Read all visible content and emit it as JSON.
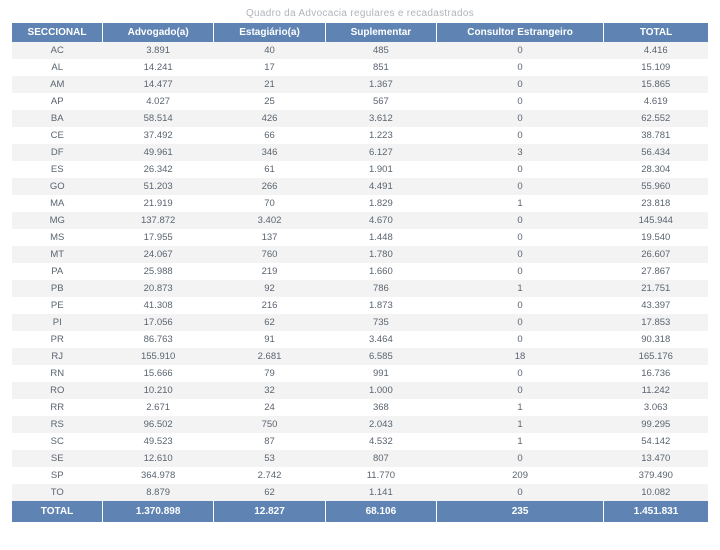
{
  "title": "Quadro da Advocacia regulares e recadastrados",
  "colors": {
    "header_bg": "#5f84b3",
    "header_text": "#ffffff",
    "row_even_bg": "#f3f3f3",
    "row_odd_bg": "#ffffff",
    "cell_text": "#5a6470",
    "title_text": "#b0b4ba"
  },
  "table": {
    "columns": [
      "SECCIONAL",
      "Advogado(a)",
      "Estagiário(a)",
      "Suplementar",
      "Consultor Estrangeiro",
      "TOTAL"
    ],
    "rows": [
      [
        "AC",
        "3.891",
        "40",
        "485",
        "0",
        "4.416"
      ],
      [
        "AL",
        "14.241",
        "17",
        "851",
        "0",
        "15.109"
      ],
      [
        "AM",
        "14.477",
        "21",
        "1.367",
        "0",
        "15.865"
      ],
      [
        "AP",
        "4.027",
        "25",
        "567",
        "0",
        "4.619"
      ],
      [
        "BA",
        "58.514",
        "426",
        "3.612",
        "0",
        "62.552"
      ],
      [
        "CE",
        "37.492",
        "66",
        "1.223",
        "0",
        "38.781"
      ],
      [
        "DF",
        "49.961",
        "346",
        "6.127",
        "3",
        "56.434"
      ],
      [
        "ES",
        "26.342",
        "61",
        "1.901",
        "0",
        "28.304"
      ],
      [
        "GO",
        "51.203",
        "266",
        "4.491",
        "0",
        "55.960"
      ],
      [
        "MA",
        "21.919",
        "70",
        "1.829",
        "1",
        "23.818"
      ],
      [
        "MG",
        "137.872",
        "3.402",
        "4.670",
        "0",
        "145.944"
      ],
      [
        "MS",
        "17.955",
        "137",
        "1.448",
        "0",
        "19.540"
      ],
      [
        "MT",
        "24.067",
        "760",
        "1.780",
        "0",
        "26.607"
      ],
      [
        "PA",
        "25.988",
        "219",
        "1.660",
        "0",
        "27.867"
      ],
      [
        "PB",
        "20.873",
        "92",
        "786",
        "1",
        "21.751"
      ],
      [
        "PE",
        "41.308",
        "216",
        "1.873",
        "0",
        "43.397"
      ],
      [
        "PI",
        "17.056",
        "62",
        "735",
        "0",
        "17.853"
      ],
      [
        "PR",
        "86.763",
        "91",
        "3.464",
        "0",
        "90.318"
      ],
      [
        "RJ",
        "155.910",
        "2.681",
        "6.585",
        "18",
        "165.176"
      ],
      [
        "RN",
        "15.666",
        "79",
        "991",
        "0",
        "16.736"
      ],
      [
        "RO",
        "10.210",
        "32",
        "1.000",
        "0",
        "11.242"
      ],
      [
        "RR",
        "2.671",
        "24",
        "368",
        "1",
        "3.063"
      ],
      [
        "RS",
        "96.502",
        "750",
        "2.043",
        "1",
        "99.295"
      ],
      [
        "SC",
        "49.523",
        "87",
        "4.532",
        "1",
        "54.142"
      ],
      [
        "SE",
        "12.610",
        "53",
        "807",
        "0",
        "13.470"
      ],
      [
        "SP",
        "364.978",
        "2.742",
        "11.770",
        "209",
        "379.490"
      ],
      [
        "TO",
        "8.879",
        "62",
        "1.141",
        "0",
        "10.082"
      ]
    ],
    "footer": [
      "TOTAL",
      "1.370.898",
      "12.827",
      "68.106",
      "235",
      "1.451.831"
    ]
  }
}
